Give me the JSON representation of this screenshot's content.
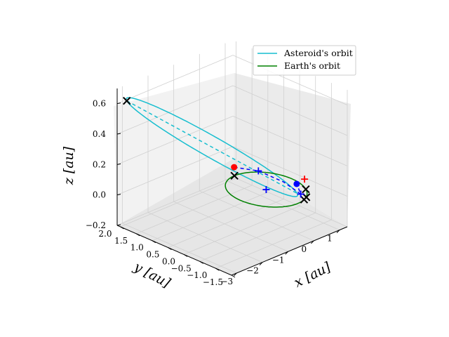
{
  "chart_data": {
    "type": "3d-line",
    "title": "",
    "xlabel": "x [au]",
    "ylabel": "y [au]",
    "zlabel": "z [au]",
    "xlim": [
      -3.2,
      1.3
    ],
    "ylim": [
      -1.5,
      2.1
    ],
    "zlim": [
      -0.2,
      0.7
    ],
    "xticks": [
      "−3",
      "−2",
      "−1",
      "0",
      "1"
    ],
    "yticks": [
      "−1.5",
      "−1.0",
      "−0.5",
      "0.0",
      "0.5",
      "1.0",
      "1.5",
      "2.0"
    ],
    "zticks": [
      "−0.2",
      "0.0",
      "0.2",
      "0.4",
      "0.6"
    ],
    "grid": true,
    "legend_position": "top-right",
    "colors": {
      "asteroid_orbit": "#17becf",
      "earth_orbit": "#008000",
      "transfer": "#0000ff",
      "departure_marker": "#ff0000",
      "arrival_marker": "#0000ff",
      "cross_marker": "#000000"
    },
    "series": [
      {
        "name": "Asteroid's orbit",
        "kind": "ellipse",
        "style": "solid",
        "center": [
          -1.22,
          0.72,
          0.3
        ],
        "semi_axis_a": [
          -1.73,
          1.28,
          0.31
        ],
        "semi_axis_b": [
          -0.6,
          -0.8,
          0.0
        ]
      },
      {
        "name": "Earth's orbit",
        "kind": "circle",
        "style": "solid",
        "center": [
          0,
          0,
          0
        ],
        "radius": 1.0
      }
    ],
    "lines": [
      {
        "kind": "asteroid-axis",
        "style": "dashed",
        "points": [
          [
            -2.95,
            2.0,
            0.61
          ],
          [
            0.51,
            -0.56,
            -0.01
          ]
        ]
      },
      {
        "kind": "transfer",
        "style": "dashed",
        "points": [
          [
            -1.0,
            0.2,
            0.2
          ],
          [
            -0.55,
            -0.2,
            0.18
          ],
          [
            0.0,
            -0.55,
            0.1
          ],
          [
            0.48,
            -0.7,
            0.0
          ],
          [
            1.0,
            -0.15,
            -0.02
          ]
        ]
      }
    ],
    "markers": [
      {
        "kind": "x",
        "color": "black",
        "point": [
          -2.95,
          2.0,
          0.61
        ]
      },
      {
        "kind": "x",
        "color": "black",
        "point": [
          0.0,
          1.0,
          0.0
        ]
      },
      {
        "kind": "x",
        "color": "black",
        "point": [
          0.8,
          -0.6,
          0.0
        ]
      },
      {
        "kind": "x",
        "color": "black",
        "point": [
          0.45,
          -0.9,
          0.0
        ]
      },
      {
        "kind": "x",
        "color": "black",
        "point": [
          0.3,
          -0.95,
          0.0
        ]
      },
      {
        "kind": "dot",
        "color": "red",
        "point": [
          -1.0,
          0.2,
          0.2
        ]
      },
      {
        "kind": "dot",
        "color": "blue",
        "point": [
          1.0,
          -0.15,
          -0.02
        ]
      },
      {
        "kind": "plus",
        "color": "blue",
        "point": [
          -0.55,
          -0.2,
          0.18
        ]
      },
      {
        "kind": "plus",
        "color": "blue",
        "point": [
          0.48,
          -0.7,
          0.0
        ]
      },
      {
        "kind": "plus",
        "color": "blue",
        "point": [
          0.0,
          0.0,
          0.0
        ]
      },
      {
        "kind": "plus",
        "color": "red",
        "point": [
          0.75,
          -0.6,
          0.07
        ]
      }
    ]
  }
}
